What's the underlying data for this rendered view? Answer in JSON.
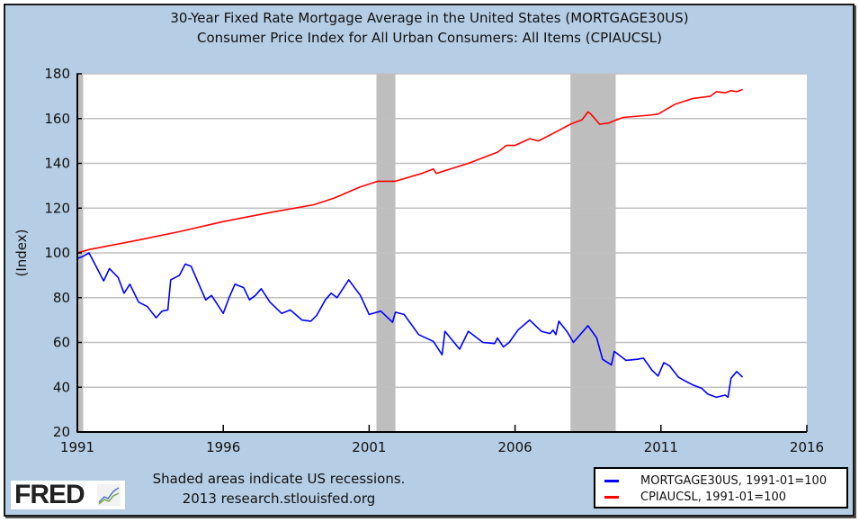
{
  "header": {
    "title_line1": "30-Year Fixed Rate Mortgage Average in the United States (MORTGAGE30US)",
    "title_line2": "Consumer Price Index for All Urban Consumers: All Items (CPIAUCSL)"
  },
  "footer": {
    "note_line1": "Shaded areas indicate US recessions.",
    "note_line2": "2013 research.stlouisfed.org",
    "logo_text": "FRED",
    "logo_icon": "line-chart-icon"
  },
  "colors": {
    "background": "#b5cde5",
    "plot_background": "#ffffff",
    "recession": "#bebebe",
    "grid": "#c0c0c0",
    "mortgage": "#0000ff",
    "cpi": "#ff0000"
  },
  "chart_data": {
    "type": "line",
    "title": "30-Year Fixed Rate Mortgage Average in the United States (MORTGAGE30US) / Consumer Price Index for All Urban Consumers: All Items (CPIAUCSL)",
    "xlabel": "",
    "ylabel": "(Index)",
    "xlim": [
      1991,
      2016
    ],
    "ylim": [
      20,
      180
    ],
    "x_ticks": [
      1991,
      1996,
      2001,
      2006,
      2011,
      2016
    ],
    "x_tick_labels": [
      "1991",
      "1996",
      "2001",
      "2006",
      "2011",
      "2016"
    ],
    "y_ticks": [
      20,
      40,
      60,
      80,
      100,
      120,
      140,
      160,
      180
    ],
    "y_tick_labels": [
      "20",
      "40",
      "60",
      "80",
      "100",
      "120",
      "140",
      "160",
      "180"
    ],
    "grid": true,
    "legend_position": "bottom-right",
    "recessions": [
      {
        "start": 1991.0,
        "end": 1991.2
      },
      {
        "start": 2001.25,
        "end": 2001.9
      },
      {
        "start": 2007.9,
        "end": 2009.45
      }
    ],
    "series": [
      {
        "name": "MORTGAGE30US, 1991-01=100",
        "color": "#0000ff",
        "points": [
          [
            1991.0,
            97.5
          ],
          [
            1991.2,
            98.5
          ],
          [
            1991.4,
            100
          ],
          [
            1991.6,
            95
          ],
          [
            1991.9,
            87.5
          ],
          [
            1992.1,
            93
          ],
          [
            1992.4,
            89
          ],
          [
            1992.6,
            82
          ],
          [
            1992.8,
            86
          ],
          [
            1993.1,
            78
          ],
          [
            1993.4,
            76
          ],
          [
            1993.7,
            71
          ],
          [
            1993.9,
            74
          ],
          [
            1994.1,
            74.5
          ],
          [
            1994.2,
            88
          ],
          [
            1994.5,
            90
          ],
          [
            1994.7,
            95
          ],
          [
            1994.9,
            94
          ],
          [
            1995.2,
            85
          ],
          [
            1995.4,
            79
          ],
          [
            1995.6,
            81
          ],
          [
            1996.0,
            73
          ],
          [
            1996.2,
            80
          ],
          [
            1996.4,
            86
          ],
          [
            1996.7,
            84.5
          ],
          [
            1996.9,
            79
          ],
          [
            1997.1,
            81
          ],
          [
            1997.3,
            84
          ],
          [
            1997.6,
            78
          ],
          [
            1998.0,
            73
          ],
          [
            1998.3,
            74.5
          ],
          [
            1998.7,
            70
          ],
          [
            1999.0,
            69.5
          ],
          [
            1999.2,
            72
          ],
          [
            1999.5,
            79
          ],
          [
            1999.7,
            82
          ],
          [
            1999.9,
            80
          ],
          [
            2000.3,
            88
          ],
          [
            2000.7,
            81
          ],
          [
            2001.0,
            72.5
          ],
          [
            2001.4,
            74
          ],
          [
            2001.8,
            69
          ],
          [
            2001.9,
            73.5
          ],
          [
            2002.2,
            72.5
          ],
          [
            2002.7,
            63.5
          ],
          [
            2003.2,
            60.5
          ],
          [
            2003.5,
            54.5
          ],
          [
            2003.6,
            65
          ],
          [
            2004.1,
            57
          ],
          [
            2004.4,
            65
          ],
          [
            2004.9,
            60
          ],
          [
            2005.3,
            59.5
          ],
          [
            2005.4,
            62
          ],
          [
            2005.6,
            58
          ],
          [
            2005.8,
            60
          ],
          [
            2006.1,
            65.5
          ],
          [
            2006.5,
            70
          ],
          [
            2006.9,
            65
          ],
          [
            2007.2,
            64
          ],
          [
            2007.3,
            65.5
          ],
          [
            2007.4,
            63.5
          ],
          [
            2007.5,
            69.5
          ],
          [
            2007.8,
            64.5
          ],
          [
            2008.0,
            60
          ],
          [
            2008.5,
            67.5
          ],
          [
            2008.8,
            62
          ],
          [
            2009.0,
            52.5
          ],
          [
            2009.3,
            50
          ],
          [
            2009.4,
            56
          ],
          [
            2009.8,
            52
          ],
          [
            2010.2,
            52.5
          ],
          [
            2010.4,
            53
          ],
          [
            2010.7,
            47.5
          ],
          [
            2010.9,
            45
          ],
          [
            2011.1,
            51
          ],
          [
            2011.3,
            49.5
          ],
          [
            2011.6,
            44.5
          ],
          [
            2011.8,
            43
          ],
          [
            2012.1,
            41
          ],
          [
            2012.4,
            39.5
          ],
          [
            2012.6,
            37
          ],
          [
            2012.9,
            35.5
          ],
          [
            2013.2,
            36.5
          ],
          [
            2013.3,
            35.5
          ],
          [
            2013.4,
            44
          ],
          [
            2013.6,
            47
          ],
          [
            2013.8,
            44.5
          ]
        ]
      },
      {
        "name": "CPIAUCSL, 1991-01=100",
        "color": "#ff0000",
        "points": [
          [
            1991.0,
            100
          ],
          [
            1991.4,
            101.5
          ],
          [
            1993.0,
            105.5
          ],
          [
            1994.5,
            109.5
          ],
          [
            1996.0,
            114
          ],
          [
            1997.6,
            118
          ],
          [
            1999.1,
            121.5
          ],
          [
            1999.8,
            124.5
          ],
          [
            2000.7,
            129.5
          ],
          [
            2001.3,
            132
          ],
          [
            2001.9,
            132
          ],
          [
            2002.8,
            135.5
          ],
          [
            2003.2,
            137.5
          ],
          [
            2003.3,
            135.5
          ],
          [
            2004.4,
            140
          ],
          [
            2005.4,
            145
          ],
          [
            2005.7,
            148
          ],
          [
            2006.0,
            148
          ],
          [
            2006.5,
            151
          ],
          [
            2006.8,
            150
          ],
          [
            2007.4,
            154
          ],
          [
            2007.9,
            157.5
          ],
          [
            2008.3,
            159.5
          ],
          [
            2008.5,
            163
          ],
          [
            2008.6,
            162
          ],
          [
            2008.9,
            157.5
          ],
          [
            2009.2,
            158
          ],
          [
            2009.7,
            160.5
          ],
          [
            2010.6,
            161.5
          ],
          [
            2010.9,
            162
          ],
          [
            2011.5,
            166.5
          ],
          [
            2012.1,
            169
          ],
          [
            2012.7,
            170
          ],
          [
            2012.9,
            172
          ],
          [
            2013.2,
            171.5
          ],
          [
            2013.4,
            172.5
          ],
          [
            2013.6,
            172
          ],
          [
            2013.8,
            173
          ]
        ]
      }
    ]
  }
}
